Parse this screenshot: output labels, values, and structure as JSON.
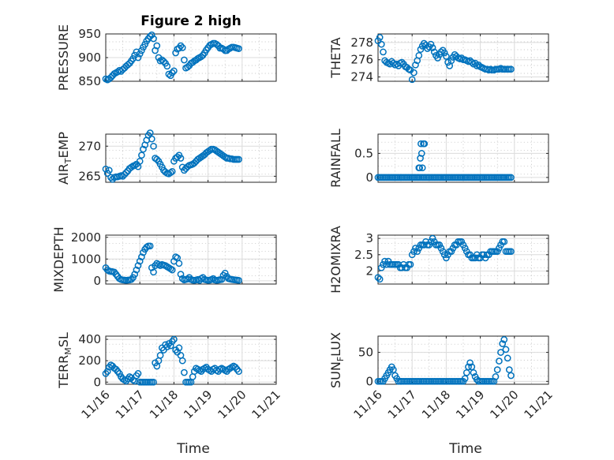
{
  "chart_data": [
    {
      "id": "pressure",
      "type": "scatter",
      "title": "Figure 2 high",
      "ylabel": "PRESSURE",
      "ylim": [
        850,
        950
      ],
      "yticks": [
        850,
        900,
        950
      ],
      "xlim": [
        0,
        5
      ],
      "xticks": [],
      "x": [
        0,
        0.05,
        0.1,
        0.15,
        0.2,
        0.25,
        0.3,
        0.35,
        0.4,
        0.45,
        0.5,
        0.55,
        0.6,
        0.65,
        0.7,
        0.75,
        0.8,
        0.85,
        0.9,
        0.95,
        1,
        1.05,
        1.1,
        1.15,
        1.2,
        1.25,
        1.3,
        1.35,
        1.4,
        1.45,
        1.5,
        1.55,
        1.6,
        1.65,
        1.7,
        1.75,
        1.8,
        1.85,
        1.9,
        1.95,
        2,
        2.05,
        2.1,
        2.15,
        2.2,
        2.25,
        2.3,
        2.35,
        2.4,
        2.45,
        2.5,
        2.55,
        2.6,
        2.65,
        2.7,
        2.75,
        2.8,
        2.85,
        2.9,
        2.95,
        3,
        3.05,
        3.1,
        3.15,
        3.2,
        3.25,
        3.3,
        3.35,
        3.4,
        3.45,
        3.5,
        3.55,
        3.6,
        3.65,
        3.7,
        3.75,
        3.8,
        3.85,
        3.9
      ],
      "y": [
        855,
        853,
        855,
        858,
        862,
        866,
        868,
        870,
        873,
        871,
        875,
        878,
        882,
        885,
        888,
        893,
        898,
        905,
        912,
        900,
        908,
        915,
        922,
        928,
        935,
        940,
        945,
        948,
        940,
        915,
        925,
        900,
        893,
        895,
        892,
        888,
        882,
        865,
        862,
        868,
        872,
        910,
        918,
        920,
        925,
        921,
        895,
        878,
        880,
        883,
        888,
        890,
        893,
        895,
        898,
        900,
        902,
        905,
        910,
        916,
        921,
        926,
        928,
        930,
        930,
        928,
        925,
        920,
        920,
        918,
        915,
        915,
        918,
        920,
        922,
        922,
        921,
        920,
        919
      ]
    },
    {
      "id": "theta",
      "type": "scatter",
      "ylabel": "THETA",
      "ylim": [
        273.5,
        279
      ],
      "yticks": [
        274,
        276,
        278
      ],
      "xlim": [
        0,
        5
      ],
      "xticks": [],
      "x": [
        0,
        0.05,
        0.1,
        0.15,
        0.2,
        0.25,
        0.3,
        0.35,
        0.4,
        0.45,
        0.5,
        0.55,
        0.6,
        0.65,
        0.7,
        0.75,
        0.8,
        0.85,
        0.9,
        0.95,
        1,
        1.05,
        1.1,
        1.15,
        1.2,
        1.25,
        1.3,
        1.35,
        1.4,
        1.45,
        1.5,
        1.55,
        1.6,
        1.65,
        1.7,
        1.75,
        1.8,
        1.85,
        1.9,
        1.95,
        2,
        2.05,
        2.1,
        2.15,
        2.2,
        2.25,
        2.3,
        2.35,
        2.4,
        2.45,
        2.5,
        2.55,
        2.6,
        2.65,
        2.7,
        2.75,
        2.8,
        2.85,
        2.9,
        2.95,
        3,
        3.05,
        3.1,
        3.15,
        3.2,
        3.25,
        3.3,
        3.35,
        3.4,
        3.45,
        3.5,
        3.55,
        3.6,
        3.65,
        3.7,
        3.75,
        3.8,
        3.85,
        3.9
      ],
      "y": [
        278.2,
        278.6,
        277.8,
        276.9,
        275.9,
        275.7,
        275.6,
        275.5,
        275.8,
        275.6,
        275.4,
        275.5,
        275.3,
        275.6,
        275.7,
        275.5,
        275.2,
        275.1,
        274.9,
        274.8,
        273.7,
        274.5,
        275.4,
        275.9,
        276.5,
        277.2,
        277.6,
        277.9,
        277.7,
        277.3,
        277.5,
        277.8,
        277.4,
        276.9,
        276.5,
        276.2,
        276.6,
        276.9,
        277.1,
        276.8,
        276.4,
        275.7,
        275.3,
        275.9,
        276.3,
        276.6,
        276.4,
        276.2,
        276.1,
        276.2,
        276.0,
        276.0,
        275.9,
        275.8,
        275.9,
        275.7,
        275.5,
        275.6,
        275.3,
        275.4,
        275.2,
        275.1,
        275.0,
        274.9,
        274.9,
        274.8,
        274.9,
        274.8,
        274.8,
        274.9,
        274.9,
        274.9,
        275.0,
        274.9,
        274.9,
        274.9,
        274.9,
        274.9,
        274.9
      ]
    },
    {
      "id": "airtemp",
      "type": "scatter",
      "ylabel": "AIR_TEMP",
      "ylim": [
        264,
        272
      ],
      "yticks": [
        265,
        270
      ],
      "xlim": [
        0,
        5
      ],
      "xticks": [],
      "x": [
        0,
        0.05,
        0.1,
        0.15,
        0.2,
        0.25,
        0.3,
        0.35,
        0.4,
        0.45,
        0.5,
        0.55,
        0.6,
        0.65,
        0.7,
        0.75,
        0.8,
        0.85,
        0.9,
        0.95,
        1,
        1.05,
        1.1,
        1.15,
        1.2,
        1.25,
        1.3,
        1.35,
        1.4,
        1.45,
        1.5,
        1.55,
        1.6,
        1.65,
        1.7,
        1.75,
        1.8,
        1.85,
        1.9,
        1.95,
        2,
        2.05,
        2.1,
        2.15,
        2.2,
        2.25,
        2.3,
        2.35,
        2.4,
        2.45,
        2.5,
        2.55,
        2.6,
        2.65,
        2.7,
        2.75,
        2.8,
        2.85,
        2.9,
        2.95,
        3,
        3.05,
        3.1,
        3.15,
        3.2,
        3.25,
        3.3,
        3.35,
        3.4,
        3.45,
        3.5,
        3.55,
        3.6,
        3.65,
        3.7,
        3.75,
        3.8,
        3.85,
        3.9
      ],
      "y": [
        266.2,
        265.5,
        266.0,
        264.8,
        264.5,
        264.8,
        264.9,
        264.9,
        265.0,
        265.1,
        265.0,
        265.3,
        265.6,
        265.9,
        266.3,
        266.5,
        266.7,
        266.8,
        267.0,
        266.6,
        267.5,
        268.5,
        269.5,
        270.2,
        271.0,
        271.8,
        272.2,
        271.2,
        270.0,
        268.0,
        267.8,
        267.5,
        267.0,
        266.5,
        266.0,
        265.7,
        265.5,
        265.4,
        265.6,
        265.8,
        267.5,
        268.0,
        268.2,
        268.5,
        268.0,
        266.5,
        266.0,
        266.3,
        266.6,
        266.8,
        266.9,
        267.0,
        267.2,
        267.5,
        267.8,
        268.0,
        268.2,
        268.4,
        268.6,
        268.9,
        269.1,
        269.3,
        269.5,
        269.5,
        269.4,
        269.2,
        269.0,
        268.8,
        268.6,
        268.4,
        268.2,
        268.0,
        268.0,
        267.9,
        267.9,
        267.8,
        267.8,
        267.8,
        267.8
      ]
    },
    {
      "id": "rainfall",
      "type": "scatter",
      "ylabel": "RAINFALL",
      "ylim": [
        -0.1,
        0.9
      ],
      "yticks": [
        0,
        0.5
      ],
      "xlim": [
        0,
        5
      ],
      "xticks": [],
      "x": [
        0,
        0.05,
        0.1,
        0.15,
        0.2,
        0.25,
        0.3,
        0.35,
        0.4,
        0.45,
        0.5,
        0.55,
        0.6,
        0.65,
        0.7,
        0.75,
        0.8,
        0.85,
        0.9,
        0.95,
        1,
        1.05,
        1.1,
        1.15,
        1.2,
        1.25,
        1.3,
        1.35,
        1.4,
        1.45,
        1.5,
        1.55,
        1.6,
        1.65,
        1.7,
        1.75,
        1.8,
        1.85,
        1.9,
        1.95,
        2,
        2.05,
        2.1,
        2.15,
        2.2,
        2.25,
        2.3,
        2.35,
        2.4,
        2.45,
        2.5,
        2.55,
        2.6,
        2.65,
        2.7,
        2.75,
        2.8,
        2.85,
        2.9,
        2.95,
        3,
        3.05,
        3.1,
        3.15,
        3.2,
        3.25,
        3.3,
        3.35,
        3.4,
        3.45,
        3.5,
        3.55,
        3.6,
        3.65,
        3.7,
        3.75,
        3.8,
        3.85,
        3.9,
        1.2,
        1.22,
        1.24,
        1.26,
        1.28,
        1.3,
        1.33,
        1.36
      ],
      "y": [
        0,
        0,
        0,
        0,
        0,
        0,
        0,
        0,
        0,
        0,
        0,
        0,
        0,
        0,
        0,
        0,
        0,
        0,
        0,
        0,
        0,
        0,
        0,
        0,
        0,
        0,
        0,
        0,
        0,
        0,
        0,
        0,
        0,
        0,
        0,
        0,
        0,
        0,
        0,
        0,
        0,
        0,
        0,
        0,
        0,
        0,
        0,
        0,
        0,
        0,
        0,
        0,
        0,
        0,
        0,
        0,
        0,
        0,
        0,
        0,
        0,
        0,
        0,
        0,
        0,
        0,
        0,
        0,
        0,
        0,
        0,
        0,
        0,
        0,
        0,
        0,
        0,
        0,
        0,
        0.2,
        0.2,
        0.4,
        0.7,
        0.5,
        0.2,
        0.7,
        0.7
      ]
    },
    {
      "id": "mixdepth",
      "type": "scatter",
      "ylabel": "MIXDEPTH",
      "ylim": [
        -150,
        2100
      ],
      "yticks": [
        0,
        1000,
        2000
      ],
      "xlim": [
        0,
        5
      ],
      "xticks": [],
      "x": [
        0,
        0.05,
        0.1,
        0.15,
        0.2,
        0.25,
        0.3,
        0.35,
        0.4,
        0.45,
        0.5,
        0.55,
        0.6,
        0.65,
        0.7,
        0.75,
        0.8,
        0.85,
        0.9,
        0.95,
        1,
        1.05,
        1.1,
        1.15,
        1.2,
        1.25,
        1.3,
        1.35,
        1.4,
        1.45,
        1.5,
        1.55,
        1.6,
        1.65,
        1.7,
        1.75,
        1.8,
        1.85,
        1.9,
        1.95,
        2,
        2.05,
        2.1,
        2.15,
        2.2,
        2.25,
        2.3,
        2.35,
        2.4,
        2.45,
        2.5,
        2.55,
        2.6,
        2.65,
        2.7,
        2.75,
        2.8,
        2.85,
        2.9,
        2.95,
        3,
        3.05,
        3.1,
        3.15,
        3.2,
        3.25,
        3.3,
        3.35,
        3.4,
        3.45,
        3.5,
        3.55,
        3.6,
        3.65,
        3.7,
        3.75,
        3.8,
        3.85,
        3.9
      ],
      "y": [
        600,
        500,
        450,
        430,
        420,
        400,
        300,
        200,
        100,
        60,
        40,
        30,
        20,
        30,
        40,
        60,
        150,
        300,
        500,
        700,
        900,
        1100,
        1300,
        1450,
        1550,
        1600,
        1600,
        600,
        400,
        700,
        800,
        750,
        700,
        750,
        720,
        700,
        650,
        600,
        550,
        500,
        900,
        1100,
        1050,
        800,
        300,
        100,
        40,
        60,
        80,
        150,
        60,
        30,
        20,
        40,
        60,
        20,
        100,
        150,
        60,
        40,
        20,
        30,
        60,
        100,
        40,
        20,
        30,
        50,
        60,
        250,
        350,
        200,
        100,
        80,
        60,
        50,
        40,
        30,
        20
      ]
    },
    {
      "id": "h2omixra",
      "type": "scatter",
      "ylabel": "H2OMIXRA",
      "ylim": [
        1.6,
        3.1
      ],
      "yticks": [
        2,
        2.5,
        3
      ],
      "xlim": [
        0,
        5
      ],
      "xticks": [],
      "x": [
        0,
        0.05,
        0.1,
        0.15,
        0.2,
        0.25,
        0.3,
        0.35,
        0.4,
        0.45,
        0.5,
        0.55,
        0.6,
        0.65,
        0.7,
        0.75,
        0.8,
        0.85,
        0.9,
        0.95,
        1,
        1.05,
        1.1,
        1.15,
        1.2,
        1.25,
        1.3,
        1.35,
        1.4,
        1.45,
        1.5,
        1.55,
        1.6,
        1.65,
        1.7,
        1.75,
        1.8,
        1.85,
        1.9,
        1.95,
        2,
        2.05,
        2.1,
        2.15,
        2.2,
        2.25,
        2.3,
        2.35,
        2.4,
        2.45,
        2.5,
        2.55,
        2.6,
        2.65,
        2.7,
        2.75,
        2.8,
        2.85,
        2.9,
        2.95,
        3,
        3.05,
        3.1,
        3.15,
        3.2,
        3.25,
        3.3,
        3.35,
        3.4,
        3.45,
        3.5,
        3.55,
        3.6,
        3.65,
        3.7,
        3.75,
        3.8,
        3.85,
        3.9
      ],
      "y": [
        1.8,
        1.75,
        2.1,
        2.2,
        2.3,
        2.2,
        2.3,
        2.2,
        2.2,
        2.2,
        2.2,
        2.2,
        2.2,
        2.1,
        2.1,
        2.2,
        2.1,
        2.1,
        2.2,
        2.2,
        2.5,
        2.6,
        2.7,
        2.6,
        2.7,
        2.8,
        2.8,
        2.8,
        2.9,
        2.8,
        2.8,
        2.9,
        3.0,
        2.9,
        2.8,
        2.8,
        2.8,
        2.7,
        2.6,
        2.5,
        2.4,
        2.5,
        2.6,
        2.6,
        2.7,
        2.8,
        2.8,
        2.9,
        2.9,
        2.9,
        2.8,
        2.7,
        2.6,
        2.5,
        2.5,
        2.4,
        2.4,
        2.4,
        2.5,
        2.4,
        2.4,
        2.5,
        2.5,
        2.4,
        2.5,
        2.5,
        2.6,
        2.6,
        2.6,
        2.6,
        2.6,
        2.7,
        2.8,
        2.9,
        2.9,
        2.6,
        2.6,
        2.6,
        2.6
      ]
    },
    {
      "id": "terrmsl",
      "type": "scatter",
      "ylabel": "TERR_MSL",
      "ylim": [
        -20,
        430
      ],
      "yticks": [
        0,
        200,
        400
      ],
      "xlim": [
        0,
        5
      ],
      "xticks": [
        "11/16",
        "11/17",
        "11/18",
        "11/19",
        "11/20",
        "11/21"
      ],
      "xlabel": "Time",
      "x": [
        0,
        0.05,
        0.1,
        0.15,
        0.2,
        0.25,
        0.3,
        0.35,
        0.4,
        0.45,
        0.5,
        0.55,
        0.6,
        0.65,
        0.7,
        0.75,
        0.8,
        0.85,
        0.9,
        0.95,
        1,
        1.05,
        1.1,
        1.15,
        1.2,
        1.25,
        1.3,
        1.35,
        1.4,
        1.45,
        1.5,
        1.55,
        1.6,
        1.65,
        1.7,
        1.75,
        1.8,
        1.85,
        1.9,
        1.95,
        2,
        2.05,
        2.1,
        2.15,
        2.2,
        2.25,
        2.3,
        2.35,
        2.4,
        2.45,
        2.5,
        2.55,
        2.6,
        2.65,
        2.7,
        2.75,
        2.8,
        2.85,
        2.9,
        2.95,
        3,
        3.05,
        3.1,
        3.15,
        3.2,
        3.25,
        3.3,
        3.35,
        3.4,
        3.45,
        3.5,
        3.55,
        3.6,
        3.65,
        3.7,
        3.75,
        3.8,
        3.85,
        3.9
      ],
      "y": [
        80,
        100,
        140,
        160,
        150,
        130,
        120,
        100,
        80,
        50,
        30,
        20,
        10,
        30,
        50,
        40,
        20,
        10,
        60,
        80,
        0,
        0,
        0,
        0,
        0,
        0,
        0,
        0,
        0,
        180,
        150,
        200,
        250,
        320,
        300,
        350,
        330,
        360,
        340,
        380,
        400,
        300,
        280,
        320,
        250,
        200,
        90,
        0,
        0,
        0,
        0,
        50,
        100,
        130,
        120,
        110,
        100,
        120,
        130,
        140,
        120,
        110,
        100,
        120,
        130,
        110,
        100,
        120,
        130,
        120,
        110,
        100,
        120,
        130,
        140,
        150,
        140,
        120,
        100
      ]
    },
    {
      "id": "sunflux",
      "type": "scatter",
      "ylabel": "SUN_FLUX",
      "ylim": [
        -5,
        78
      ],
      "yticks": [
        0,
        50
      ],
      "xlim": [
        0,
        5
      ],
      "xticks": [
        "11/16",
        "11/17",
        "11/18",
        "11/19",
        "11/20",
        "11/21"
      ],
      "xlabel": "Time",
      "x": [
        0,
        0.05,
        0.1,
        0.15,
        0.2,
        0.25,
        0.3,
        0.35,
        0.4,
        0.45,
        0.5,
        0.55,
        0.6,
        0.65,
        0.7,
        0.75,
        0.8,
        0.85,
        0.9,
        0.95,
        1,
        1.05,
        1.1,
        1.15,
        1.2,
        1.25,
        1.3,
        1.35,
        1.4,
        1.45,
        1.5,
        1.55,
        1.6,
        1.65,
        1.7,
        1.75,
        1.8,
        1.85,
        1.9,
        1.95,
        2,
        2.05,
        2.1,
        2.15,
        2.2,
        2.25,
        2.3,
        2.35,
        2.4,
        2.45,
        2.5,
        2.55,
        2.6,
        2.65,
        2.7,
        2.75,
        2.8,
        2.85,
        2.9,
        2.95,
        3,
        3.05,
        3.1,
        3.15,
        3.2,
        3.25,
        3.3,
        3.35,
        3.4,
        3.45,
        3.5,
        3.55,
        3.6,
        3.65,
        3.7,
        3.75,
        3.8,
        3.85,
        3.9
      ],
      "y": [
        0,
        0,
        0,
        0,
        5,
        10,
        15,
        20,
        25,
        20,
        10,
        5,
        0,
        0,
        0,
        0,
        0,
        0,
        0,
        0,
        0,
        0,
        0,
        0,
        0,
        0,
        0,
        0,
        0,
        0,
        0,
        0,
        0,
        0,
        0,
        0,
        0,
        0,
        0,
        0,
        0,
        0,
        0,
        0,
        0,
        0,
        0,
        0,
        0,
        0,
        0,
        5,
        15,
        25,
        32,
        25,
        15,
        8,
        3,
        0,
        0,
        0,
        0,
        0,
        0,
        0,
        0,
        0,
        0,
        8,
        20,
        35,
        50,
        65,
        72,
        55,
        40,
        20,
        10
      ]
    }
  ]
}
